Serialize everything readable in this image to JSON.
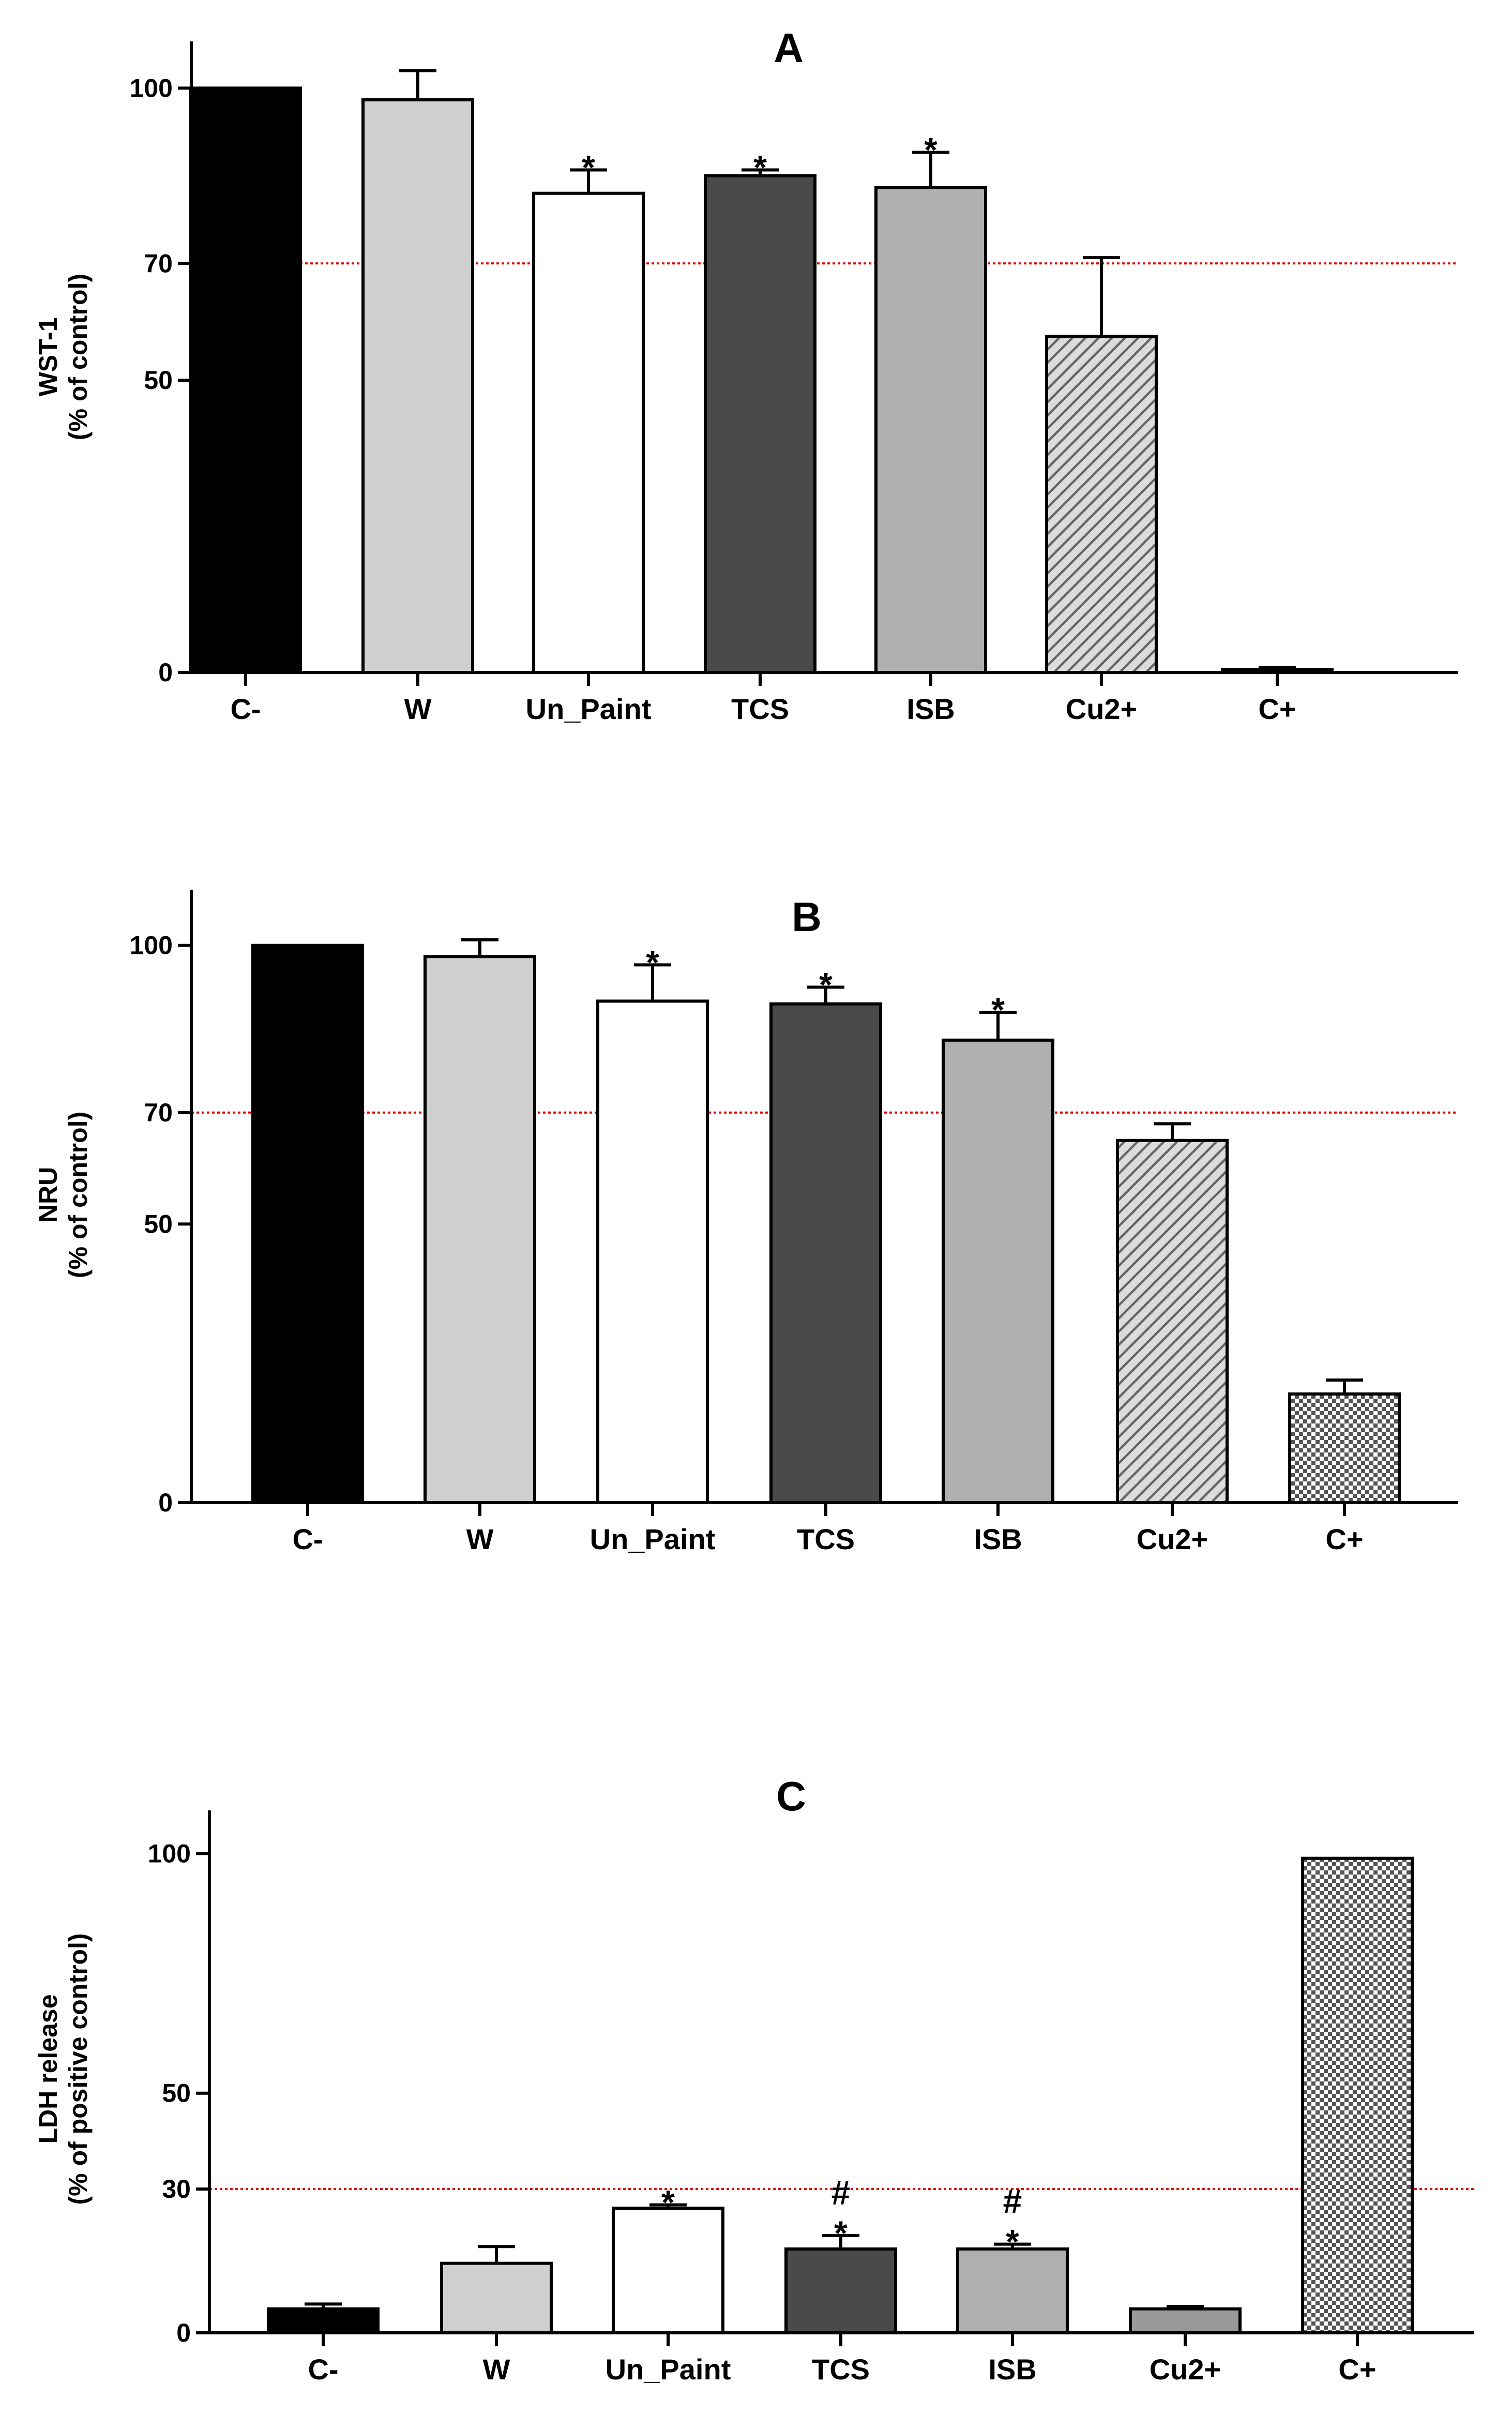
{
  "chart_data": [
    {
      "type": "bar",
      "title": "A",
      "ylabel": [
        "WST-1",
        "(% of control)"
      ],
      "xlabel": "",
      "ylim": [
        0,
        108
      ],
      "yticks": [
        0,
        50,
        70,
        100
      ],
      "threshold": 70,
      "categories": [
        "C-",
        "W",
        "Un_Paint",
        "TCS",
        "ISB",
        "Cu2+",
        "C+"
      ],
      "values": [
        100,
        98,
        82,
        85,
        83,
        57.5,
        0.5
      ],
      "errors": [
        0,
        5,
        4,
        1,
        6,
        13.5,
        0.3
      ],
      "significance": [
        [],
        [],
        [
          "*"
        ],
        [
          "*"
        ],
        [
          "*"
        ],
        [],
        []
      ],
      "fills": [
        "black",
        "lightgray",
        "white",
        "darkgray",
        "gray",
        "hatch",
        "black"
      ]
    },
    {
      "type": "bar",
      "title": "B",
      "ylabel": [
        "NRU",
        "(% of control)"
      ],
      "xlabel": "",
      "ylim": [
        0,
        110
      ],
      "yticks": [
        0,
        50,
        70,
        100
      ],
      "threshold": 70,
      "categories": [
        "C-",
        "W",
        "Un_Paint",
        "TCS",
        "ISB",
        "Cu2+",
        "C+"
      ],
      "values": [
        100,
        98,
        90,
        89.5,
        83,
        65,
        19.5
      ],
      "errors": [
        0,
        3,
        6.5,
        3,
        5,
        3,
        2.5
      ],
      "significance": [
        [],
        [],
        [
          "*"
        ],
        [
          "*"
        ],
        [
          "*"
        ],
        [],
        []
      ],
      "fills": [
        "black",
        "lightgray",
        "white",
        "darkgray",
        "gray",
        "hatch",
        "checker"
      ]
    },
    {
      "type": "bar",
      "title": "C",
      "ylabel": [
        "LDH release",
        "(% of positive control)"
      ],
      "xlabel": "",
      "ylim": [
        0,
        109
      ],
      "yticks": [
        0,
        30,
        50,
        100
      ],
      "threshold": 30,
      "categories": [
        "C-",
        "W",
        "Un_Paint",
        "TCS",
        "ISB",
        "Cu2+",
        "C+"
      ],
      "values": [
        5,
        14.5,
        26,
        17.5,
        17.5,
        5,
        99
      ],
      "errors": [
        1,
        3.5,
        0.7,
        2.8,
        1,
        0.5,
        0
      ],
      "significance": [
        [],
        [],
        [
          "*"
        ],
        [
          "*",
          "#"
        ],
        [
          "*",
          "#"
        ],
        [],
        []
      ],
      "fills": [
        "black",
        "lightgray",
        "white",
        "darkgray",
        "gray",
        "medgray",
        "checker"
      ]
    }
  ]
}
